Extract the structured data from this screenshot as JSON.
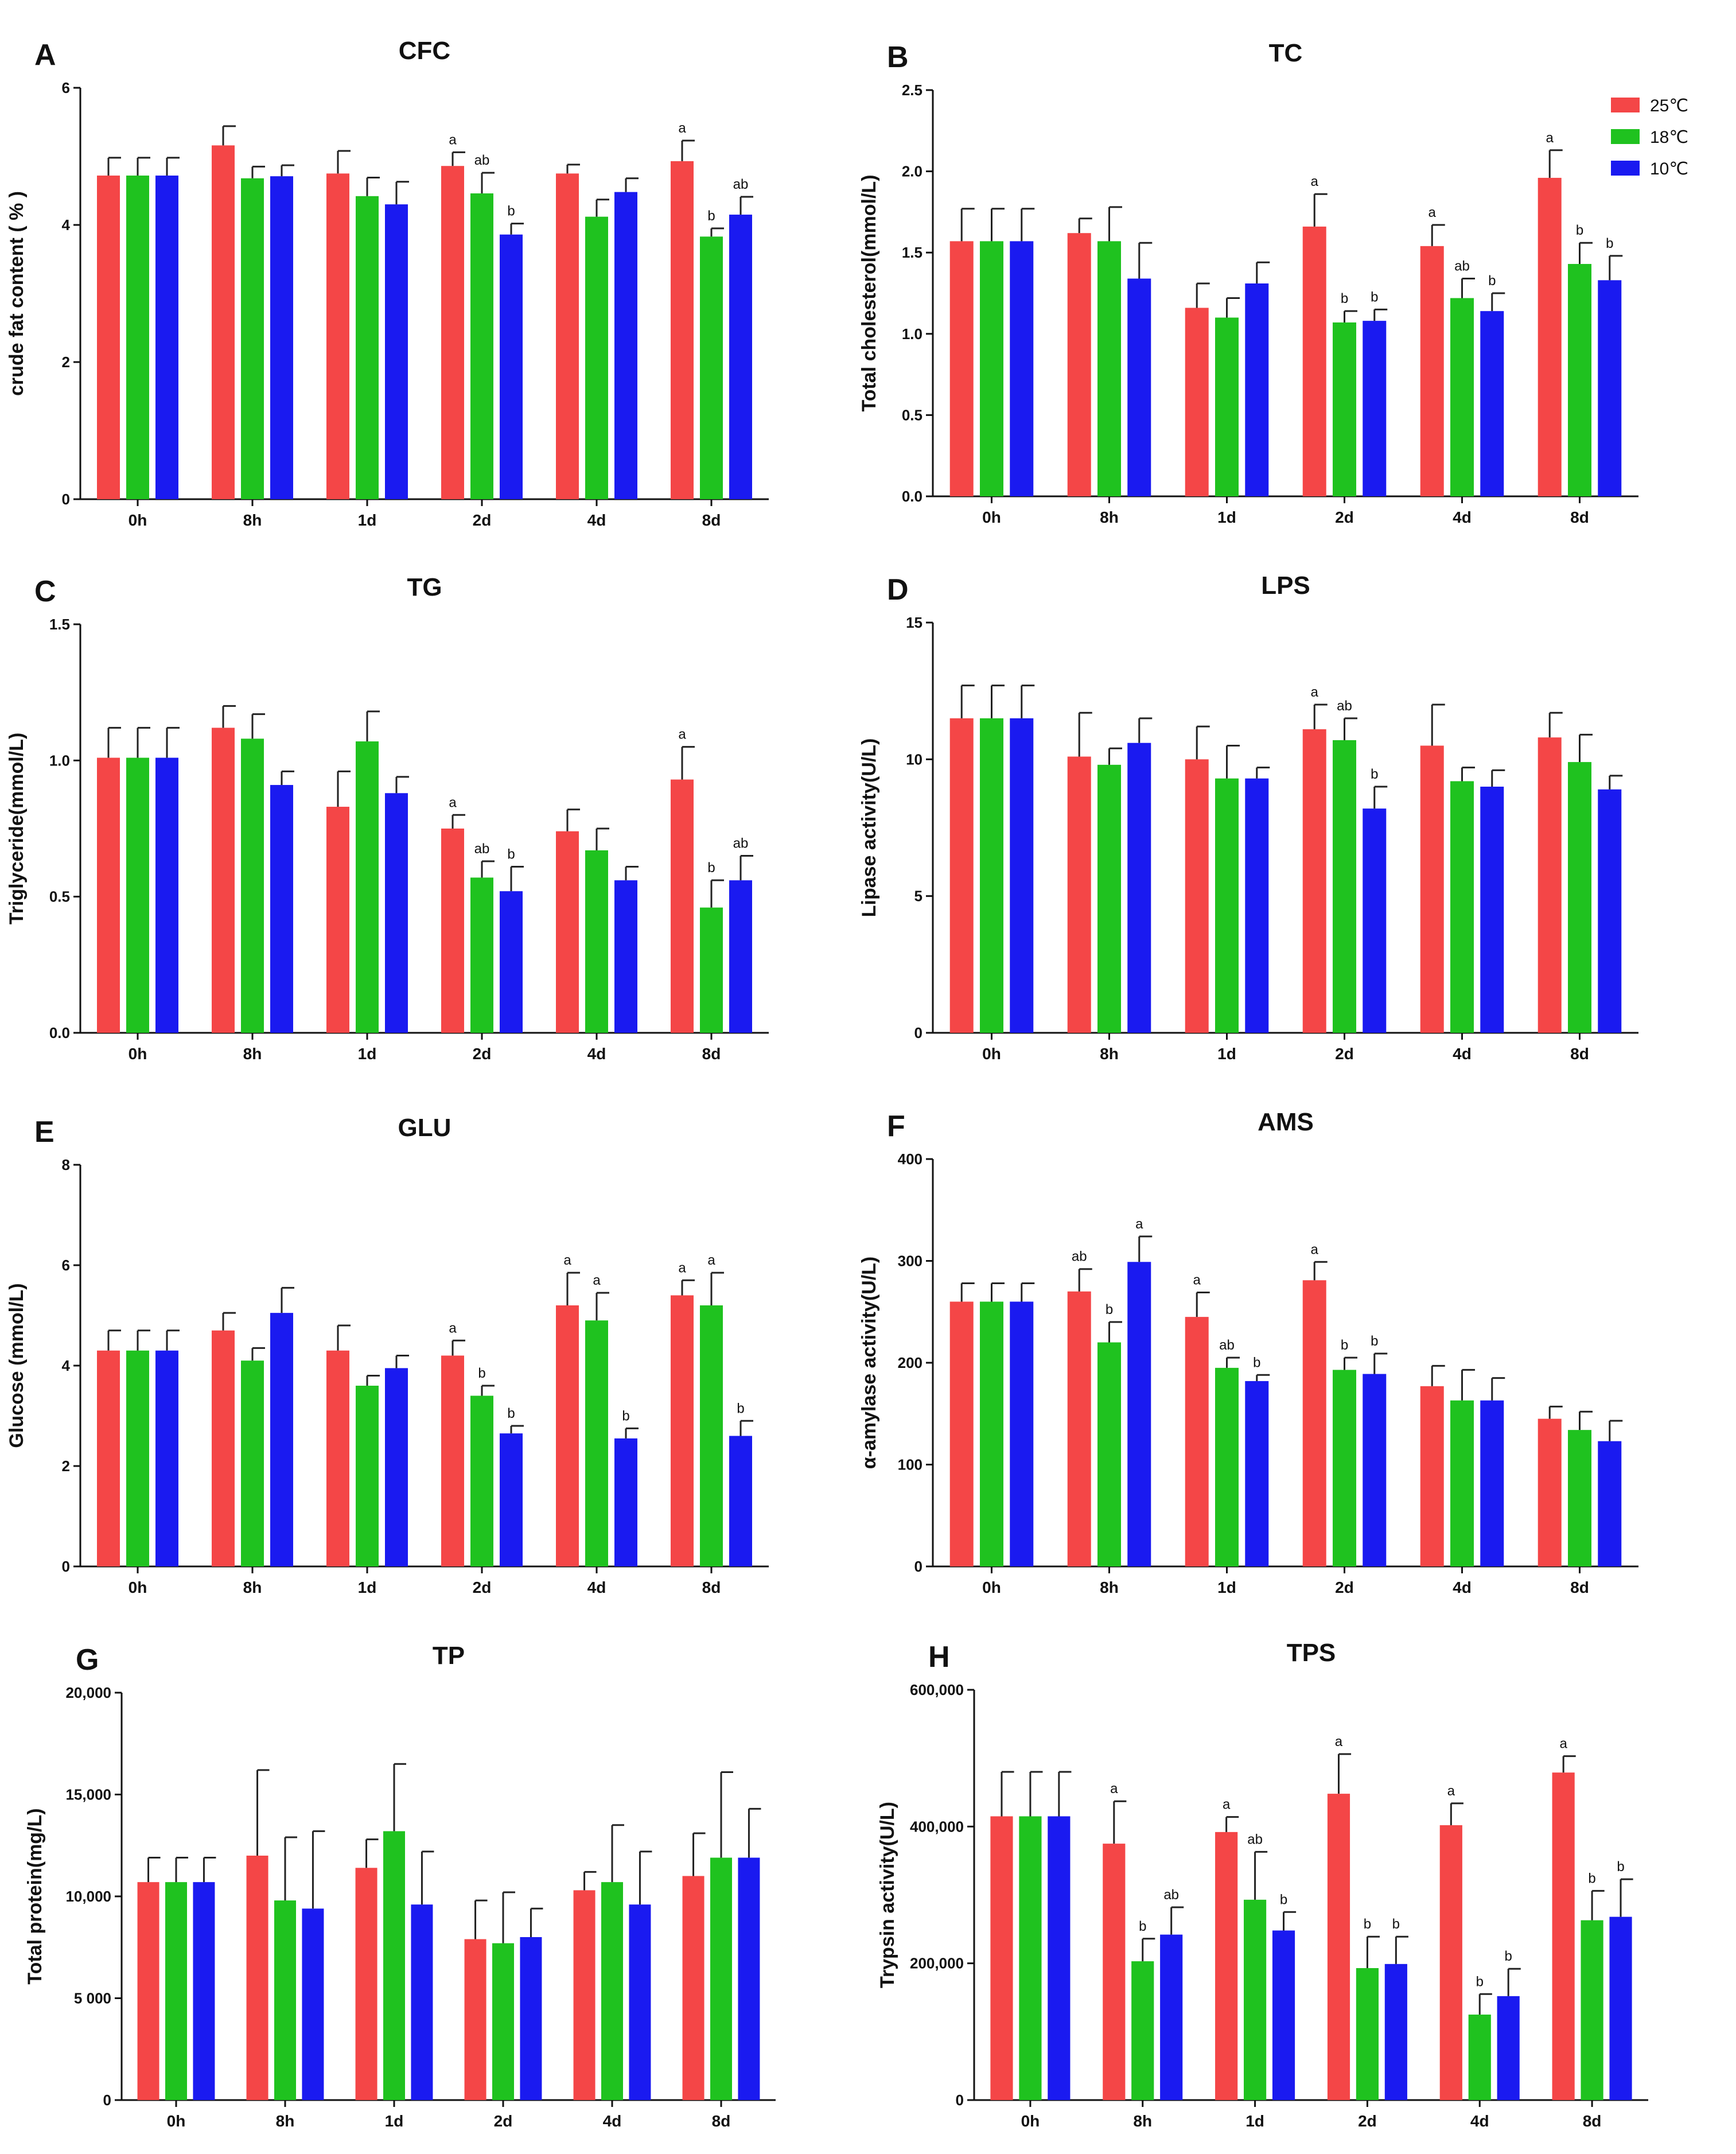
{
  "legend": [
    {
      "label": "25℃",
      "color": "#F44647"
    },
    {
      "label": "18℃",
      "color": "#1FC21F"
    },
    {
      "label": "10℃",
      "color": "#1A1AF0"
    }
  ],
  "chart_data": [
    {
      "panel": "A",
      "type": "bar",
      "title": "CFC",
      "ylabel": "crude fat content ( % )",
      "categories": [
        "0h",
        "8h",
        "1d",
        "2d",
        "4d",
        "8d"
      ],
      "ylim": [
        0,
        6
      ],
      "yticks": [
        "0",
        "2",
        "4",
        "6"
      ],
      "series": [
        {
          "name": "25℃",
          "values": [
            4.72,
            5.16,
            4.75,
            4.86,
            4.75,
            4.93
          ],
          "errors": [
            0.26,
            0.28,
            0.33,
            0.2,
            0.13,
            0.3
          ],
          "sig": [
            "",
            "",
            "",
            "a",
            "",
            "a"
          ]
        },
        {
          "name": "18℃",
          "values": [
            4.72,
            4.68,
            4.42,
            4.46,
            4.12,
            3.83
          ],
          "errors": [
            0.26,
            0.17,
            0.27,
            0.3,
            0.25,
            0.12
          ],
          "sig": [
            "",
            "",
            "",
            "ab",
            "",
            "b"
          ]
        },
        {
          "name": "10℃",
          "values": [
            4.72,
            4.71,
            4.3,
            3.86,
            4.48,
            4.15
          ],
          "errors": [
            0.26,
            0.16,
            0.33,
            0.16,
            0.2,
            0.26
          ],
          "sig": [
            "",
            "",
            "",
            "b",
            "",
            "ab"
          ]
        }
      ]
    },
    {
      "panel": "B",
      "type": "bar",
      "title": "TC",
      "ylabel": "Total cholesterol(mmol/L)",
      "categories": [
        "0h",
        "8h",
        "1d",
        "2d",
        "4d",
        "8d"
      ],
      "ylim": [
        0,
        2.5
      ],
      "yticks": [
        "0.0",
        "0.5",
        "1.0",
        "1.5",
        "2.0",
        "2.5"
      ],
      "series": [
        {
          "name": "25℃",
          "values": [
            1.57,
            1.62,
            1.16,
            1.66,
            1.54,
            1.96
          ],
          "errors": [
            0.2,
            0.09,
            0.15,
            0.2,
            0.13,
            0.17
          ],
          "sig": [
            "",
            "",
            "",
            "a",
            "a",
            "a"
          ]
        },
        {
          "name": "18℃",
          "values": [
            1.57,
            1.57,
            1.1,
            1.07,
            1.22,
            1.43
          ],
          "errors": [
            0.2,
            0.21,
            0.12,
            0.07,
            0.12,
            0.13
          ],
          "sig": [
            "",
            "",
            "",
            "b",
            "ab",
            "b"
          ]
        },
        {
          "name": "10℃",
          "values": [
            1.57,
            1.34,
            1.31,
            1.08,
            1.14,
            1.33
          ],
          "errors": [
            0.2,
            0.22,
            0.13,
            0.07,
            0.11,
            0.15
          ],
          "sig": [
            "",
            "",
            "",
            "b",
            "b",
            "b"
          ]
        }
      ]
    },
    {
      "panel": "C",
      "type": "bar",
      "title": "TG",
      "ylabel": "Triglyceride(mmol/L)",
      "categories": [
        "0h",
        "8h",
        "1d",
        "2d",
        "4d",
        "8d"
      ],
      "ylim": [
        0,
        1.5
      ],
      "yticks": [
        "0.0",
        "0.5",
        "1.0",
        "1.5"
      ],
      "series": [
        {
          "name": "25℃",
          "values": [
            1.01,
            1.12,
            0.83,
            0.75,
            0.74,
            0.93
          ],
          "errors": [
            0.11,
            0.08,
            0.13,
            0.05,
            0.08,
            0.12
          ],
          "sig": [
            "",
            "",
            "",
            "a",
            "",
            "a"
          ]
        },
        {
          "name": "18℃",
          "values": [
            1.01,
            1.08,
            1.07,
            0.57,
            0.67,
            0.46
          ],
          "errors": [
            0.11,
            0.09,
            0.11,
            0.06,
            0.08,
            0.1
          ],
          "sig": [
            "",
            "",
            "",
            "ab",
            "",
            "b"
          ]
        },
        {
          "name": "10℃",
          "values": [
            1.01,
            0.91,
            0.88,
            0.52,
            0.56,
            0.56
          ],
          "errors": [
            0.11,
            0.05,
            0.06,
            0.09,
            0.05,
            0.09
          ],
          "sig": [
            "",
            "",
            "",
            "b",
            "",
            "ab"
          ]
        }
      ]
    },
    {
      "panel": "D",
      "type": "bar",
      "title": "LPS",
      "ylabel": "Lipase activity(U/L)",
      "categories": [
        "0h",
        "8h",
        "1d",
        "2d",
        "4d",
        "8d"
      ],
      "ylim": [
        0,
        15
      ],
      "yticks": [
        "0",
        "5",
        "10",
        "15"
      ],
      "series": [
        {
          "name": "25℃",
          "values": [
            11.5,
            10.1,
            10.0,
            11.1,
            10.5,
            10.8
          ],
          "errors": [
            1.2,
            1.6,
            1.2,
            0.9,
            1.5,
            0.9
          ],
          "sig": [
            "",
            "",
            "",
            "a",
            "",
            ""
          ]
        },
        {
          "name": "18℃",
          "values": [
            11.5,
            9.8,
            9.3,
            10.7,
            9.2,
            9.9
          ],
          "errors": [
            1.2,
            0.6,
            1.2,
            0.8,
            0.5,
            1.0
          ],
          "sig": [
            "",
            "",
            "",
            "ab",
            "",
            ""
          ]
        },
        {
          "name": "10℃",
          "values": [
            11.5,
            10.6,
            9.3,
            8.2,
            9.0,
            8.9
          ],
          "errors": [
            1.2,
            0.9,
            0.4,
            0.8,
            0.6,
            0.5
          ],
          "sig": [
            "",
            "",
            "",
            "b",
            "",
            ""
          ]
        }
      ]
    },
    {
      "panel": "E",
      "type": "bar",
      "title": "GLU",
      "ylabel": "Glucose (mmol/L)",
      "categories": [
        "0h",
        "8h",
        "1d",
        "2d",
        "4d",
        "8d"
      ],
      "ylim": [
        0,
        8
      ],
      "yticks": [
        "0",
        "2",
        "4",
        "6",
        "8"
      ],
      "series": [
        {
          "name": "25℃",
          "values": [
            4.3,
            4.7,
            4.3,
            4.2,
            5.2,
            5.4
          ],
          "errors": [
            0.4,
            0.35,
            0.5,
            0.3,
            0.65,
            0.3
          ],
          "sig": [
            "",
            "",
            "",
            "a",
            "a",
            "a"
          ]
        },
        {
          "name": "18℃",
          "values": [
            4.3,
            4.1,
            3.6,
            3.4,
            4.9,
            5.2
          ],
          "errors": [
            0.4,
            0.25,
            0.2,
            0.2,
            0.55,
            0.65
          ],
          "sig": [
            "",
            "",
            "",
            "b",
            "a",
            "a"
          ]
        },
        {
          "name": "10℃",
          "values": [
            4.3,
            5.05,
            3.95,
            2.65,
            2.55,
            2.6
          ],
          "errors": [
            0.4,
            0.5,
            0.25,
            0.15,
            0.2,
            0.3
          ],
          "sig": [
            "",
            "",
            "",
            "b",
            "b",
            "b"
          ]
        }
      ]
    },
    {
      "panel": "F",
      "type": "bar",
      "title": "AMS",
      "ylabel": "α-amylase activity(U/L)",
      "categories": [
        "0h",
        "8h",
        "1d",
        "2d",
        "4d",
        "8d"
      ],
      "ylim": [
        0,
        400
      ],
      "yticks": [
        "0",
        "100",
        "200",
        "300",
        "400"
      ],
      "series": [
        {
          "name": "25℃",
          "values": [
            260,
            270,
            245,
            281,
            177,
            145
          ],
          "errors": [
            18,
            22,
            24,
            18,
            20,
            12
          ],
          "sig": [
            "",
            "ab",
            "a",
            "a",
            "",
            ""
          ]
        },
        {
          "name": "18℃",
          "values": [
            260,
            220,
            195,
            193,
            163,
            134
          ],
          "errors": [
            18,
            20,
            10,
            12,
            30,
            18
          ],
          "sig": [
            "",
            "b",
            "ab",
            "b",
            "",
            ""
          ]
        },
        {
          "name": "10℃",
          "values": [
            260,
            299,
            182,
            189,
            163,
            123
          ],
          "errors": [
            18,
            25,
            6,
            20,
            22,
            20
          ],
          "sig": [
            "",
            "a",
            "b",
            "b",
            "",
            ""
          ]
        }
      ]
    },
    {
      "panel": "G",
      "type": "bar",
      "title": "TP",
      "ylabel": "Total protein(mg/L)",
      "categories": [
        "0h",
        "8h",
        "1d",
        "2d",
        "4d",
        "8d"
      ],
      "ylim": [
        0,
        20000
      ],
      "yticks": [
        "0",
        "5 000",
        "10,000",
        "15,000",
        "20,000"
      ],
      "series": [
        {
          "name": "25℃",
          "values": [
            10700,
            12000,
            11400,
            7900,
            10300,
            11000
          ],
          "errors": [
            1200,
            4200,
            1400,
            1900,
            900,
            2100
          ],
          "sig": [
            "",
            "",
            "",
            "",
            "",
            ""
          ]
        },
        {
          "name": "18℃",
          "values": [
            10700,
            9800,
            13200,
            7700,
            10700,
            11900
          ],
          "errors": [
            1200,
            3100,
            3300,
            2500,
            2800,
            4200
          ],
          "sig": [
            "",
            "",
            "",
            "",
            "",
            ""
          ]
        },
        {
          "name": "10℃",
          "values": [
            10700,
            9400,
            9600,
            8000,
            9600,
            11900
          ],
          "errors": [
            1200,
            3800,
            2600,
            1400,
            2600,
            2400
          ],
          "sig": [
            "",
            "",
            "",
            "",
            "",
            ""
          ]
        }
      ]
    },
    {
      "panel": "H",
      "type": "bar",
      "title": "TPS",
      "ylabel": "Trypsin activity(U/L)",
      "categories": [
        "0h",
        "8h",
        "1d",
        "2d",
        "4d",
        "8d"
      ],
      "ylim": [
        0,
        600000
      ],
      "yticks": [
        "0",
        "200,000",
        "400,000",
        "600,000"
      ],
      "series": [
        {
          "name": "25℃",
          "values": [
            415000,
            375000,
            392000,
            448000,
            402000,
            479000
          ],
          "errors": [
            65000,
            62000,
            22000,
            58000,
            32000,
            24000
          ],
          "sig": [
            "",
            "a",
            "a",
            "a",
            "a",
            "a"
          ]
        },
        {
          "name": "18℃",
          "values": [
            415000,
            203000,
            293000,
            193000,
            125000,
            263000
          ],
          "errors": [
            65000,
            33000,
            70000,
            46000,
            30000,
            43000
          ],
          "sig": [
            "",
            "b",
            "ab",
            "b",
            "b",
            "b"
          ]
        },
        {
          "name": "10℃",
          "values": [
            415000,
            242000,
            248000,
            199000,
            152000,
            268000
          ],
          "errors": [
            65000,
            40000,
            27000,
            40000,
            40000,
            55000
          ],
          "sig": [
            "",
            "ab",
            "b",
            "b",
            "b",
            "b"
          ]
        }
      ]
    }
  ]
}
